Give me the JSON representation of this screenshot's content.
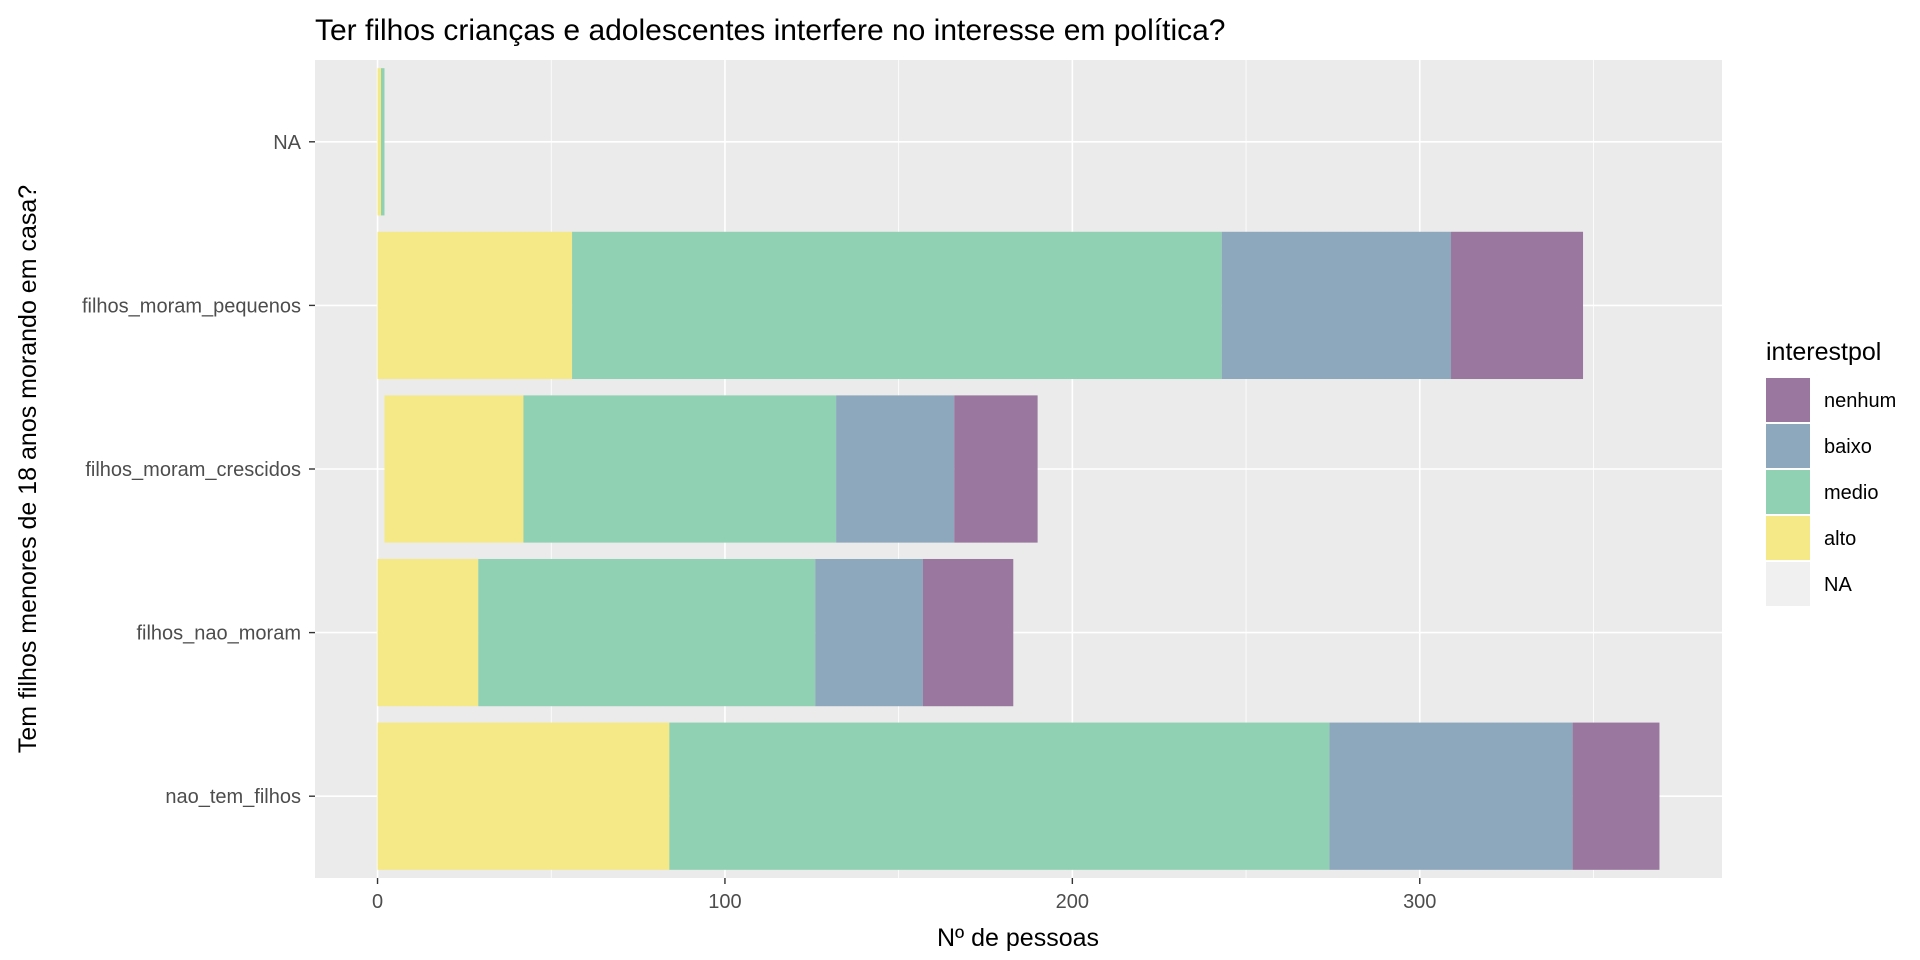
{
  "chart_data": {
    "type": "bar",
    "orientation": "horizontal",
    "stacked": true,
    "title": "Ter filhos crianças e adolescentes interfere no interesse em política?",
    "xlabel": "Nº de pessoas",
    "ylabel": "Tem filhos menores de 18 anos morando em casa?",
    "xlim": [
      -18,
      387
    ],
    "x_ticks": [
      0,
      100,
      200,
      300
    ],
    "grid": true,
    "categories": [
      "nao_tem_filhos",
      "filhos_nao_moram",
      "filhos_moram_crescidos",
      "filhos_moram_pequenos",
      "NA"
    ],
    "series": [
      {
        "name": "alto",
        "color": "#f5e887",
        "values": [
          84,
          29,
          40,
          56,
          1
        ]
      },
      {
        "name": "medio",
        "color": "#8fd1b2",
        "values": [
          190,
          97,
          90,
          187,
          1
        ]
      },
      {
        "name": "baixo",
        "color": "#8da8bc",
        "values": [
          70,
          31,
          34,
          66,
          0
        ]
      },
      {
        "name": "nenhum",
        "color": "#9a779e",
        "values": [
          25,
          26,
          24,
          38,
          0
        ]
      }
    ],
    "offsets": [
      0,
      0,
      2,
      0,
      0
    ],
    "legend": {
      "title": "interestpol",
      "position": "right",
      "items": [
        {
          "label": "nenhum",
          "color": "#9a779e"
        },
        {
          "label": "baixo",
          "color": "#8da8bc"
        },
        {
          "label": "medio",
          "color": "#8fd1b2"
        },
        {
          "label": "alto",
          "color": "#f5e887"
        },
        {
          "label": "NA",
          "color": "#f0f0f0"
        }
      ]
    },
    "panel_background": "#ebebeb",
    "grid_color": "#ffffff"
  }
}
